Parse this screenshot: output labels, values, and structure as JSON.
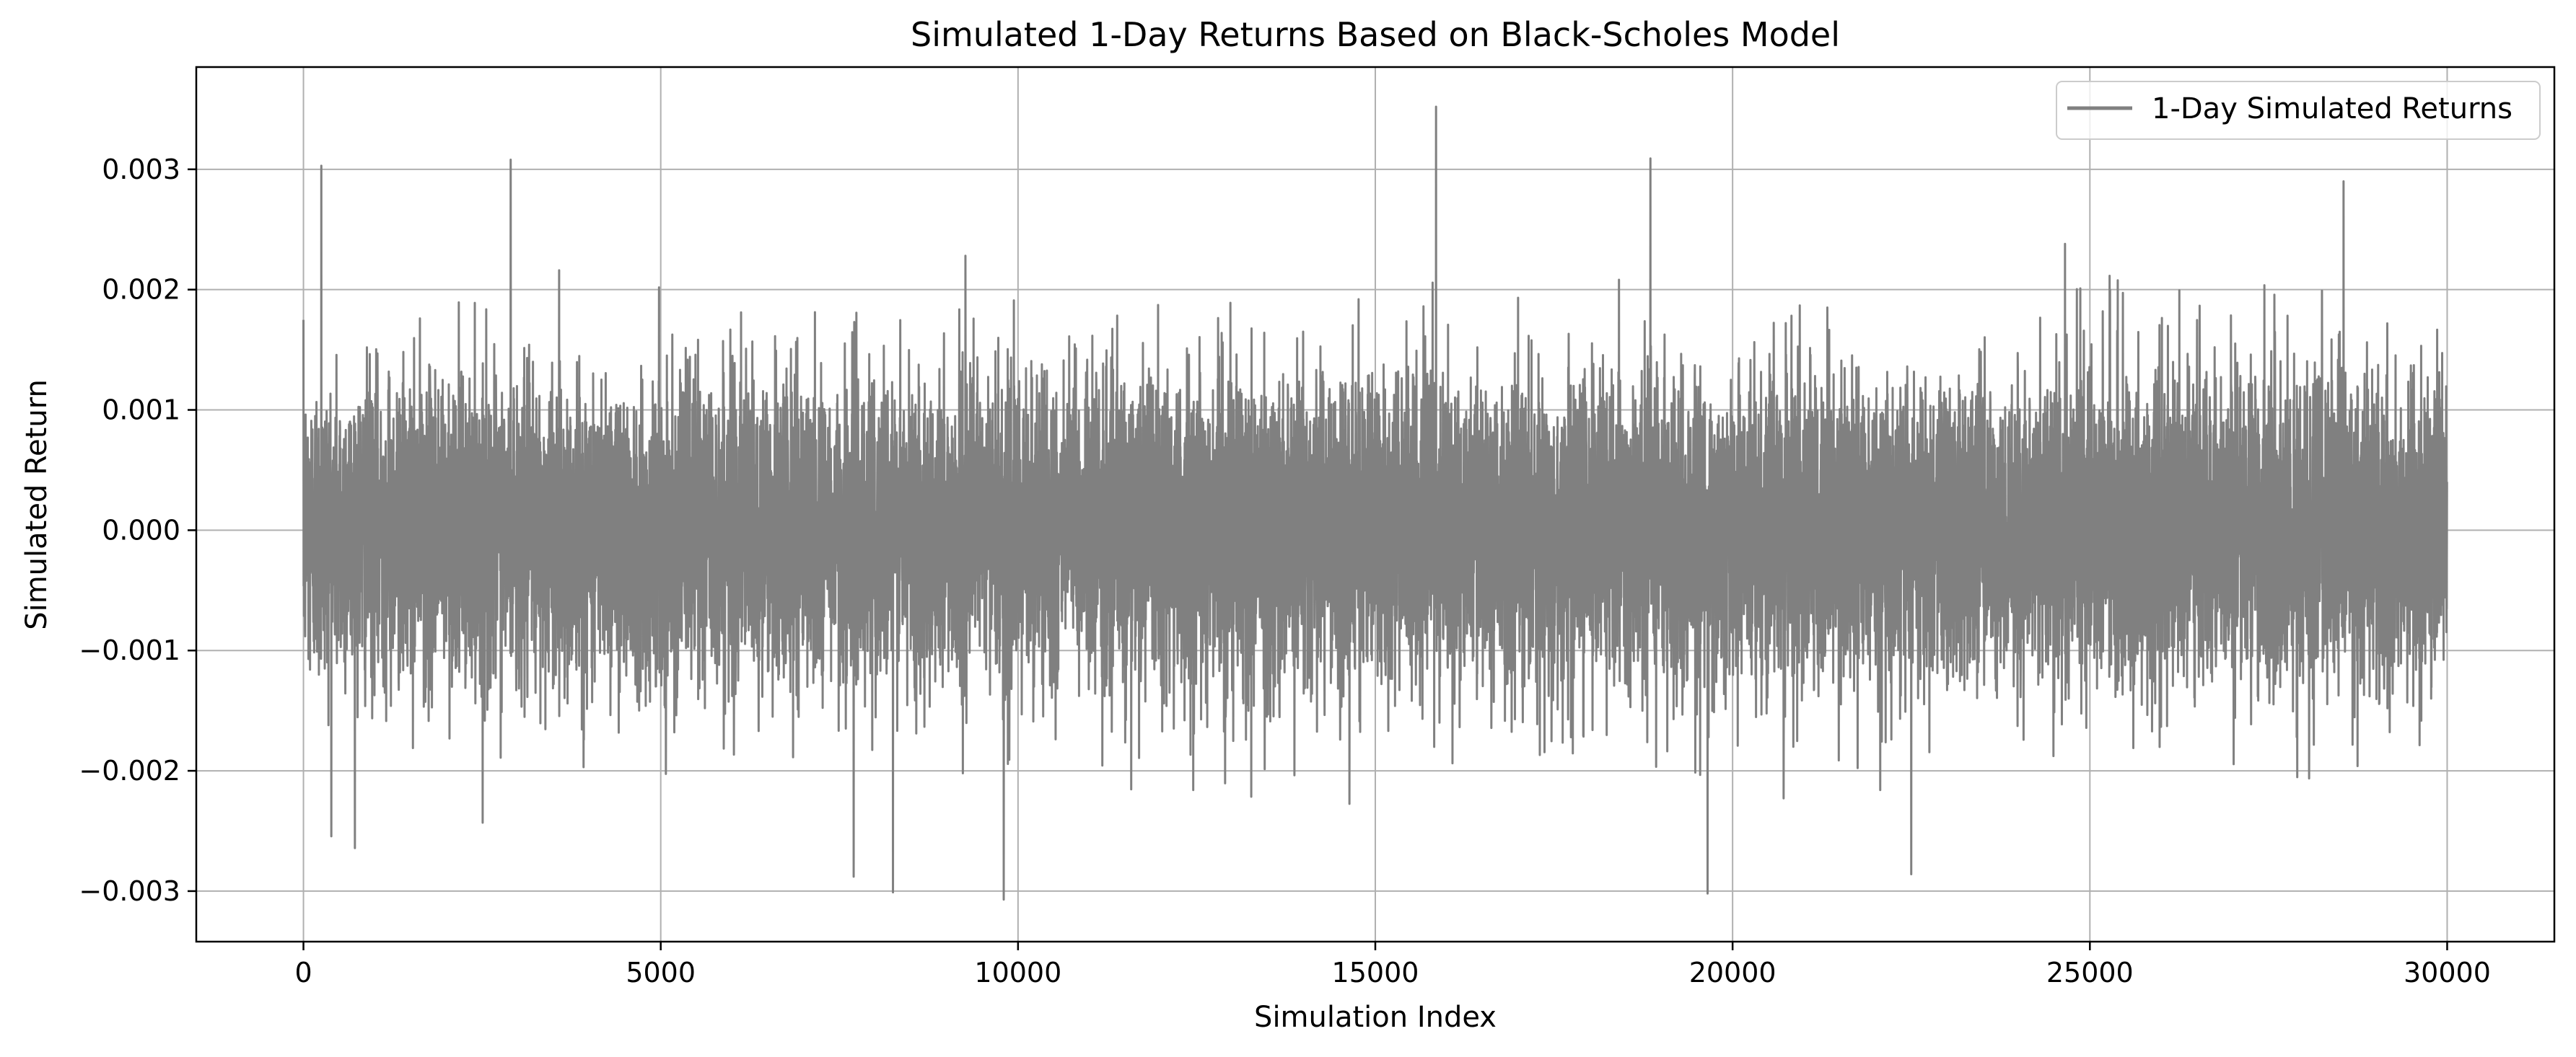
{
  "chart_data": {
    "type": "line",
    "title": "Simulated 1-Day Returns Based on Black-Scholes Model",
    "xlabel": "Simulation Index",
    "ylabel": "Simulated Return",
    "xlim": [
      -1500,
      31500
    ],
    "ylim": [
      -0.00342,
      0.00385
    ],
    "xticks": [
      0,
      5000,
      10000,
      15000,
      20000,
      25000,
      30000
    ],
    "xtick_labels": [
      "0",
      "5000",
      "10000",
      "15000",
      "20000",
      "25000",
      "30000"
    ],
    "yticks": [
      -0.003,
      -0.002,
      -0.001,
      0.0,
      0.001,
      0.002,
      0.003
    ],
    "ytick_labels": [
      "−0.003",
      "−0.002",
      "−0.001",
      "0.000",
      "0.001",
      "0.002",
      "0.003"
    ],
    "grid": true,
    "legend_position": "top-right",
    "series": [
      {
        "name": "1-Day Simulated Returns",
        "color": "#808080",
        "n_points": 30000,
        "x_range": [
          0,
          29999
        ],
        "mean": 0.0,
        "std": 0.00063,
        "notable_points": [
          {
            "x": 250,
            "y": 0.00303
          },
          {
            "x": 2900,
            "y": 0.00308
          },
          {
            "x": 15850,
            "y": 0.00352
          },
          {
            "x": 18850,
            "y": 0.00309
          },
          {
            "x": 28550,
            "y": 0.0029
          },
          {
            "x": 9800,
            "y": -0.00307
          },
          {
            "x": 8250,
            "y": -0.00301
          },
          {
            "x": 19650,
            "y": -0.00302
          },
          {
            "x": 7700,
            "y": -0.00288
          },
          {
            "x": 22500,
            "y": -0.00286
          }
        ]
      }
    ]
  }
}
